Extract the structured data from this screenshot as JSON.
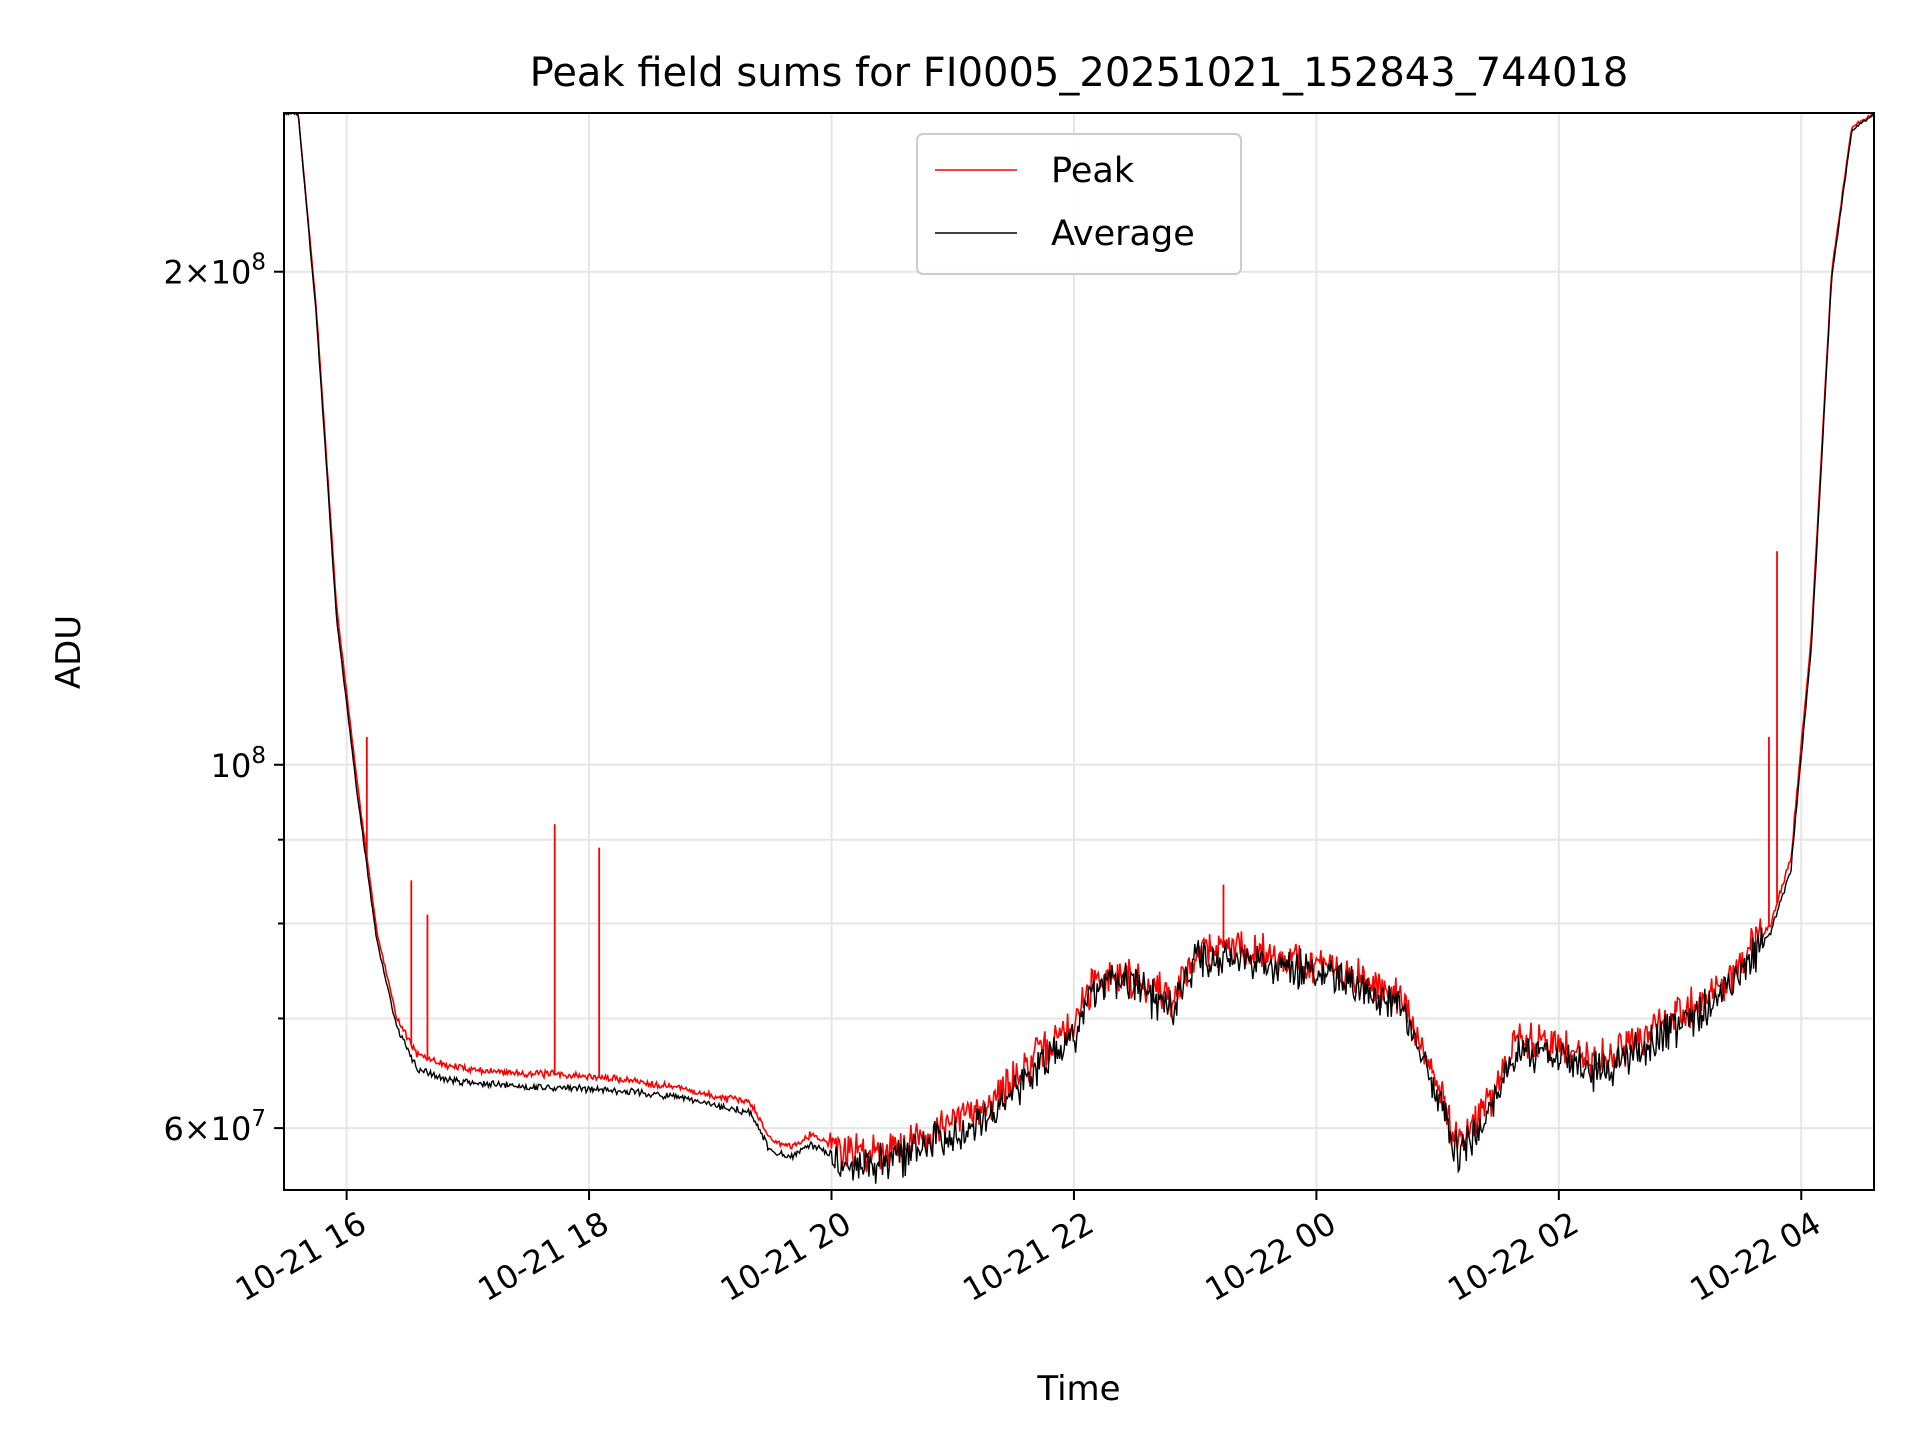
{
  "chart_data": {
    "type": "line",
    "title": "Peak field sums for FI0005_20251021_152843_744018",
    "xlabel": "Time",
    "ylabel": "ADU",
    "y_scale": "log",
    "ylim": [
      55000000,
      250000000
    ],
    "xlim": [
      "2025-10-21 15:29",
      "2025-10-22 04:36"
    ],
    "grid": true,
    "legend_position": "upper-center",
    "x_ticks": [
      {
        "value": "2025-10-21 16:00",
        "label": "10-21 16"
      },
      {
        "value": "2025-10-21 18:00",
        "label": "10-21 18"
      },
      {
        "value": "2025-10-21 20:00",
        "label": "10-21 20"
      },
      {
        "value": "2025-10-21 22:00",
        "label": "10-21 22"
      },
      {
        "value": "2025-10-22 00:00",
        "label": "10-22 00"
      },
      {
        "value": "2025-10-22 02:00",
        "label": "10-22 02"
      },
      {
        "value": "2025-10-22 04:00",
        "label": "10-22 04"
      }
    ],
    "y_ticks": [
      {
        "value": 60000000,
        "base": "6",
        "exp": "7"
      },
      {
        "value": 100000000,
        "base": "",
        "exp": "8"
      },
      {
        "value": 200000000,
        "base": "2",
        "exp": "8"
      }
    ],
    "y_minor_ticks": [
      70000000,
      80000000,
      90000000
    ],
    "series": [
      {
        "name": "Peak",
        "color": "#ff0000",
        "x": [
          "2025-10-21 15:29",
          "2025-10-21 15:36",
          "2025-10-21 15:45",
          "2025-10-21 15:55",
          "2025-10-21 16:05",
          "2025-10-21 16:15",
          "2025-10-21 16:25",
          "2025-10-21 16:35",
          "2025-10-21 16:50",
          "2025-10-21 17:10",
          "2025-10-21 17:30",
          "2025-10-21 17:45",
          "2025-10-21 18:00",
          "2025-10-21 18:20",
          "2025-10-21 18:45",
          "2025-10-21 19:00",
          "2025-10-21 19:20",
          "2025-10-21 19:30",
          "2025-10-21 19:40",
          "2025-10-21 19:50",
          "2025-10-21 20:05",
          "2025-10-21 20:20",
          "2025-10-21 20:40",
          "2025-10-21 21:00",
          "2025-10-21 21:20",
          "2025-10-21 21:40",
          "2025-10-21 22:00",
          "2025-10-21 22:10",
          "2025-10-21 22:25",
          "2025-10-21 22:40",
          "2025-10-21 22:50",
          "2025-10-21 23:00",
          "2025-10-21 23:20",
          "2025-10-21 23:40",
          "2025-10-22 00:00",
          "2025-10-22 00:20",
          "2025-10-22 00:40",
          "2025-10-22 00:55",
          "2025-10-22 01:10",
          "2025-10-22 01:25",
          "2025-10-22 01:40",
          "2025-10-22 02:00",
          "2025-10-22 02:20",
          "2025-10-22 02:40",
          "2025-10-22 03:00",
          "2025-10-22 03:20",
          "2025-10-22 03:35",
          "2025-10-22 03:45",
          "2025-10-22 03:55",
          "2025-10-22 04:05",
          "2025-10-22 04:15",
          "2025-10-22 04:25",
          "2025-10-22 04:36"
        ],
        "y": [
          250000000,
          250000000,
          190000000,
          125000000,
          98000000,
          79000000,
          70000000,
          66500000,
          65500000,
          65000000,
          64800000,
          64700000,
          64500000,
          64200000,
          63500000,
          62800000,
          62200000,
          59000000,
          58500000,
          59500000,
          58200000,
          58000000,
          59000000,
          60500000,
          62500000,
          66000000,
          69500000,
          74000000,
          74500000,
          73000000,
          72000000,
          77000000,
          77500000,
          76500000,
          75500000,
          74000000,
          72500000,
          66000000,
          59000000,
          62000000,
          68000000,
          67500000,
          66000000,
          68000000,
          70500000,
          73000000,
          77000000,
          80000000,
          88000000,
          120000000,
          200000000,
          245000000,
          250000000
        ],
        "spikes": [
          {
            "x": "2025-10-21 16:10",
            "y": 104000000
          },
          {
            "x": "2025-10-21 16:32",
            "y": 85000000
          },
          {
            "x": "2025-10-21 16:40",
            "y": 81000000
          },
          {
            "x": "2025-10-21 17:43",
            "y": 92000000
          },
          {
            "x": "2025-10-21 18:05",
            "y": 89000000
          },
          {
            "x": "2025-10-21 23:14",
            "y": 84500000
          },
          {
            "x": "2025-10-22 03:44",
            "y": 104000000
          },
          {
            "x": "2025-10-22 03:48",
            "y": 135000000
          }
        ]
      },
      {
        "name": "Average",
        "color": "#000000",
        "x": [
          "2025-10-21 15:29",
          "2025-10-21 15:36",
          "2025-10-21 15:45",
          "2025-10-21 15:55",
          "2025-10-21 16:05",
          "2025-10-21 16:15",
          "2025-10-21 16:25",
          "2025-10-21 16:35",
          "2025-10-21 16:50",
          "2025-10-21 17:10",
          "2025-10-21 17:30",
          "2025-10-21 17:45",
          "2025-10-21 18:00",
          "2025-10-21 18:20",
          "2025-10-21 18:45",
          "2025-10-21 19:00",
          "2025-10-21 19:20",
          "2025-10-21 19:30",
          "2025-10-21 19:40",
          "2025-10-21 19:50",
          "2025-10-21 20:05",
          "2025-10-21 20:20",
          "2025-10-21 20:40",
          "2025-10-21 21:00",
          "2025-10-21 21:20",
          "2025-10-21 21:40",
          "2025-10-21 22:00",
          "2025-10-21 22:10",
          "2025-10-21 22:25",
          "2025-10-21 22:40",
          "2025-10-21 22:50",
          "2025-10-21 23:00",
          "2025-10-21 23:20",
          "2025-10-21 23:40",
          "2025-10-22 00:00",
          "2025-10-22 00:20",
          "2025-10-22 00:40",
          "2025-10-22 00:55",
          "2025-10-22 01:10",
          "2025-10-22 01:25",
          "2025-10-22 01:40",
          "2025-10-22 02:00",
          "2025-10-22 02:20",
          "2025-10-22 02:40",
          "2025-10-22 03:00",
          "2025-10-22 03:20",
          "2025-10-22 03:35",
          "2025-10-22 03:45",
          "2025-10-22 03:55",
          "2025-10-22 04:05",
          "2025-10-22 04:15",
          "2025-10-22 04:25",
          "2025-10-22 04:36"
        ],
        "y": [
          250000000,
          250000000,
          188000000,
          123000000,
          96500000,
          78000000,
          69000000,
          65200000,
          64200000,
          63800000,
          63600000,
          63500000,
          63400000,
          63200000,
          62600000,
          62000000,
          61300000,
          58000000,
          57600000,
          58600000,
          57200000,
          57000000,
          58000000,
          59600000,
          61500000,
          65000000,
          68500000,
          73000000,
          73500000,
          72000000,
          71000000,
          76000000,
          76500000,
          75500000,
          74500000,
          73000000,
          71500000,
          65000000,
          58000000,
          61000000,
          67000000,
          66500000,
          65000000,
          67000000,
          69500000,
          72000000,
          76000000,
          79000000,
          86500000,
          118000000,
          198000000,
          244000000,
          250000000
        ]
      }
    ]
  }
}
